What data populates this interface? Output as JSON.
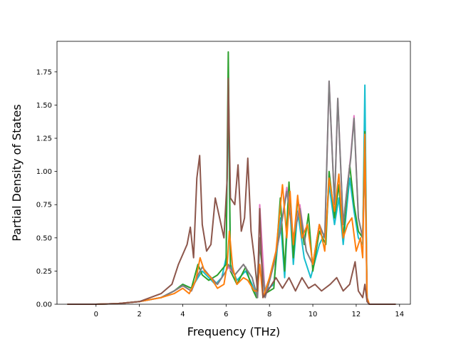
{
  "chart_data": {
    "type": "line",
    "xlabel": "Frequency (THz)",
    "ylabel": "Partial Density of States",
    "xlim": [
      -1.8,
      14.5
    ],
    "ylim": [
      0.0,
      1.98
    ],
    "xticks": [
      0,
      2,
      4,
      6,
      8,
      10,
      12,
      14
    ],
    "yticks": [
      0.0,
      0.25,
      0.5,
      0.75,
      1.0,
      1.25,
      1.5,
      1.75
    ],
    "xtick_labels": [
      "0",
      "2",
      "4",
      "6",
      "8",
      "10",
      "12",
      "14"
    ],
    "ytick_labels": [
      "0.00",
      "0.25",
      "0.50",
      "0.75",
      "1.00",
      "1.25",
      "1.50",
      "1.75"
    ],
    "grid": false,
    "legend": "none",
    "series": [
      {
        "color": "#17becf",
        "points": [
          [
            -1.3,
            0
          ],
          [
            0,
            0
          ],
          [
            1,
            0.005
          ],
          [
            2,
            0.02
          ],
          [
            3,
            0.05
          ],
          [
            3.6,
            0.1
          ],
          [
            4,
            0.15
          ],
          [
            4.4,
            0.12
          ],
          [
            4.7,
            0.2
          ],
          [
            4.9,
            0.25
          ],
          [
            5.2,
            0.2
          ],
          [
            5.5,
            0.15
          ],
          [
            5.8,
            0.2
          ],
          [
            6.0,
            0.35
          ],
          [
            6.1,
            1.65
          ],
          [
            6.2,
            0.3
          ],
          [
            6.5,
            0.18
          ],
          [
            6.9,
            0.25
          ],
          [
            7.2,
            0.15
          ],
          [
            7.4,
            0.05
          ],
          [
            7.55,
            0.5
          ],
          [
            7.8,
            0.1
          ],
          [
            8.2,
            0.15
          ],
          [
            8.5,
            0.65
          ],
          [
            8.7,
            0.2
          ],
          [
            8.9,
            0.85
          ],
          [
            9.1,
            0.3
          ],
          [
            9.3,
            0.7
          ],
          [
            9.6,
            0.35
          ],
          [
            9.9,
            0.2
          ],
          [
            10.3,
            0.45
          ],
          [
            10.6,
            0.55
          ],
          [
            10.75,
            0.9
          ],
          [
            11.0,
            0.6
          ],
          [
            11.2,
            0.8
          ],
          [
            11.4,
            0.45
          ],
          [
            11.7,
            0.95
          ],
          [
            11.9,
            0.7
          ],
          [
            12.1,
            0.5
          ],
          [
            12.3,
            0.45
          ],
          [
            12.4,
            1.65
          ],
          [
            12.5,
            0.05
          ],
          [
            12.6,
            0
          ],
          [
            13.8,
            0
          ]
        ]
      },
      {
        "color": "#2ca02c",
        "points": [
          [
            -1.3,
            0
          ],
          [
            0,
            0
          ],
          [
            1,
            0.005
          ],
          [
            2,
            0.02
          ],
          [
            3,
            0.05
          ],
          [
            3.6,
            0.1
          ],
          [
            4,
            0.15
          ],
          [
            4.4,
            0.12
          ],
          [
            4.7,
            0.3
          ],
          [
            4.9,
            0.22
          ],
          [
            5.2,
            0.18
          ],
          [
            5.6,
            0.22
          ],
          [
            6.0,
            0.3
          ],
          [
            6.1,
            1.9
          ],
          [
            6.2,
            0.25
          ],
          [
            6.5,
            0.15
          ],
          [
            6.9,
            0.28
          ],
          [
            7.2,
            0.12
          ],
          [
            7.4,
            0.05
          ],
          [
            7.55,
            0.45
          ],
          [
            7.8,
            0.08
          ],
          [
            8.2,
            0.12
          ],
          [
            8.5,
            0.8
          ],
          [
            8.7,
            0.25
          ],
          [
            8.9,
            0.92
          ],
          [
            9.1,
            0.35
          ],
          [
            9.3,
            0.8
          ],
          [
            9.6,
            0.45
          ],
          [
            9.8,
            0.68
          ],
          [
            10.0,
            0.25
          ],
          [
            10.3,
            0.55
          ],
          [
            10.6,
            0.45
          ],
          [
            10.75,
            1.0
          ],
          [
            11.0,
            0.65
          ],
          [
            11.2,
            0.9
          ],
          [
            11.4,
            0.5
          ],
          [
            11.7,
            1.05
          ],
          [
            11.9,
            0.75
          ],
          [
            12.1,
            0.55
          ],
          [
            12.3,
            0.5
          ],
          [
            12.4,
            1.3
          ],
          [
            12.5,
            0.05
          ],
          [
            12.6,
            0
          ],
          [
            13.8,
            0
          ]
        ]
      },
      {
        "color": "#e377c2",
        "points": [
          [
            -1.3,
            0
          ],
          [
            0,
            0
          ],
          [
            1,
            0.005
          ],
          [
            2,
            0.02
          ],
          [
            3,
            0.05
          ],
          [
            3.6,
            0.1
          ],
          [
            4,
            0.14
          ],
          [
            4.4,
            0.1
          ],
          [
            4.7,
            0.22
          ],
          [
            4.9,
            0.28
          ],
          [
            5.2,
            0.22
          ],
          [
            5.6,
            0.15
          ],
          [
            6.0,
            0.25
          ],
          [
            6.1,
            0.28
          ],
          [
            6.4,
            0.22
          ],
          [
            6.8,
            0.3
          ],
          [
            7.2,
            0.2
          ],
          [
            7.45,
            0.05
          ],
          [
            7.55,
            0.75
          ],
          [
            7.8,
            0.05
          ],
          [
            8.2,
            0.3
          ],
          [
            8.5,
            0.55
          ],
          [
            8.8,
            0.88
          ],
          [
            9.1,
            0.5
          ],
          [
            9.4,
            0.75
          ],
          [
            9.7,
            0.4
          ],
          [
            10.0,
            0.3
          ],
          [
            10.3,
            0.6
          ],
          [
            10.55,
            0.5
          ],
          [
            10.75,
            1.68
          ],
          [
            11.0,
            0.75
          ],
          [
            11.15,
            1.55
          ],
          [
            11.4,
            0.6
          ],
          [
            11.6,
            0.9
          ],
          [
            11.75,
            1.12
          ],
          [
            11.9,
            1.42
          ],
          [
            12.1,
            0.65
          ],
          [
            12.3,
            0.5
          ],
          [
            12.4,
            1.15
          ],
          [
            12.5,
            0.05
          ],
          [
            12.6,
            0
          ],
          [
            13.8,
            0
          ]
        ]
      },
      {
        "color": "#7f7f7f",
        "points": [
          [
            -1.3,
            0
          ],
          [
            0,
            0
          ],
          [
            1,
            0.005
          ],
          [
            2,
            0.02
          ],
          [
            3,
            0.05
          ],
          [
            3.6,
            0.1
          ],
          [
            4,
            0.14
          ],
          [
            4.4,
            0.1
          ],
          [
            4.7,
            0.22
          ],
          [
            4.9,
            0.28
          ],
          [
            5.2,
            0.22
          ],
          [
            5.6,
            0.15
          ],
          [
            6.0,
            0.25
          ],
          [
            6.1,
            0.3
          ],
          [
            6.4,
            0.22
          ],
          [
            6.8,
            0.3
          ],
          [
            7.2,
            0.2
          ],
          [
            7.45,
            0.05
          ],
          [
            7.55,
            0.5
          ],
          [
            7.8,
            0.05
          ],
          [
            8.2,
            0.3
          ],
          [
            8.5,
            0.55
          ],
          [
            8.8,
            0.85
          ],
          [
            9.1,
            0.5
          ],
          [
            9.4,
            0.72
          ],
          [
            9.7,
            0.4
          ],
          [
            10.0,
            0.3
          ],
          [
            10.3,
            0.6
          ],
          [
            10.55,
            0.5
          ],
          [
            10.75,
            1.68
          ],
          [
            11.0,
            0.75
          ],
          [
            11.15,
            1.55
          ],
          [
            11.4,
            0.6
          ],
          [
            11.6,
            0.9
          ],
          [
            11.75,
            1.1
          ],
          [
            11.9,
            1.4
          ],
          [
            12.1,
            0.65
          ],
          [
            12.3,
            0.5
          ],
          [
            12.4,
            1.1
          ],
          [
            12.5,
            0.05
          ],
          [
            12.6,
            0
          ],
          [
            13.8,
            0
          ]
        ]
      },
      {
        "color": "#ff7f0e",
        "points": [
          [
            -1.3,
            0
          ],
          [
            0,
            0
          ],
          [
            1,
            0.005
          ],
          [
            2,
            0.02
          ],
          [
            3,
            0.05
          ],
          [
            3.6,
            0.08
          ],
          [
            4,
            0.12
          ],
          [
            4.3,
            0.08
          ],
          [
            4.6,
            0.18
          ],
          [
            4.8,
            0.35
          ],
          [
            5.0,
            0.25
          ],
          [
            5.3,
            0.2
          ],
          [
            5.6,
            0.12
          ],
          [
            5.9,
            0.15
          ],
          [
            6.05,
            0.3
          ],
          [
            6.15,
            0.55
          ],
          [
            6.3,
            0.28
          ],
          [
            6.5,
            0.15
          ],
          [
            6.8,
            0.2
          ],
          [
            7.0,
            0.18
          ],
          [
            7.3,
            0.1
          ],
          [
            7.45,
            0.1
          ],
          [
            7.55,
            0.3
          ],
          [
            7.7,
            0.05
          ],
          [
            8.0,
            0.2
          ],
          [
            8.3,
            0.4
          ],
          [
            8.6,
            0.9
          ],
          [
            8.8,
            0.5
          ],
          [
            8.95,
            0.85
          ],
          [
            9.1,
            0.45
          ],
          [
            9.3,
            0.82
          ],
          [
            9.5,
            0.5
          ],
          [
            9.75,
            0.6
          ],
          [
            10.0,
            0.3
          ],
          [
            10.3,
            0.6
          ],
          [
            10.55,
            0.4
          ],
          [
            10.75,
            0.95
          ],
          [
            11.0,
            0.7
          ],
          [
            11.2,
            0.98
          ],
          [
            11.4,
            0.5
          ],
          [
            11.6,
            0.6
          ],
          [
            11.8,
            0.65
          ],
          [
            12.0,
            0.4
          ],
          [
            12.2,
            0.5
          ],
          [
            12.3,
            0.35
          ],
          [
            12.4,
            1.28
          ],
          [
            12.5,
            0.05
          ],
          [
            12.6,
            0
          ],
          [
            13.8,
            0
          ]
        ]
      },
      {
        "color": "#8c564b",
        "points": [
          [
            -1.3,
            0
          ],
          [
            0,
            0
          ],
          [
            1,
            0.005
          ],
          [
            2,
            0.02
          ],
          [
            3,
            0.08
          ],
          [
            3.5,
            0.15
          ],
          [
            3.8,
            0.3
          ],
          [
            4.2,
            0.45
          ],
          [
            4.35,
            0.58
          ],
          [
            4.5,
            0.35
          ],
          [
            4.65,
            0.95
          ],
          [
            4.78,
            1.12
          ],
          [
            4.9,
            0.6
          ],
          [
            5.1,
            0.4
          ],
          [
            5.3,
            0.45
          ],
          [
            5.5,
            0.8
          ],
          [
            5.7,
            0.65
          ],
          [
            5.9,
            0.5
          ],
          [
            6.05,
            0.95
          ],
          [
            6.1,
            1.7
          ],
          [
            6.2,
            0.8
          ],
          [
            6.4,
            0.75
          ],
          [
            6.55,
            1.05
          ],
          [
            6.7,
            0.55
          ],
          [
            6.85,
            0.65
          ],
          [
            7.0,
            1.1
          ],
          [
            7.15,
            0.55
          ],
          [
            7.3,
            0.35
          ],
          [
            7.45,
            0.1
          ],
          [
            7.55,
            0.72
          ],
          [
            7.7,
            0.05
          ],
          [
            8.0,
            0.12
          ],
          [
            8.3,
            0.2
          ],
          [
            8.6,
            0.12
          ],
          [
            8.9,
            0.2
          ],
          [
            9.2,
            0.1
          ],
          [
            9.5,
            0.2
          ],
          [
            9.8,
            0.12
          ],
          [
            10.1,
            0.15
          ],
          [
            10.4,
            0.1
          ],
          [
            10.8,
            0.15
          ],
          [
            11.1,
            0.2
          ],
          [
            11.4,
            0.1
          ],
          [
            11.7,
            0.15
          ],
          [
            11.95,
            0.32
          ],
          [
            12.1,
            0.1
          ],
          [
            12.3,
            0.05
          ],
          [
            12.4,
            0.15
          ],
          [
            12.5,
            0.02
          ],
          [
            12.6,
            0
          ],
          [
            13.8,
            0
          ]
        ]
      }
    ]
  }
}
